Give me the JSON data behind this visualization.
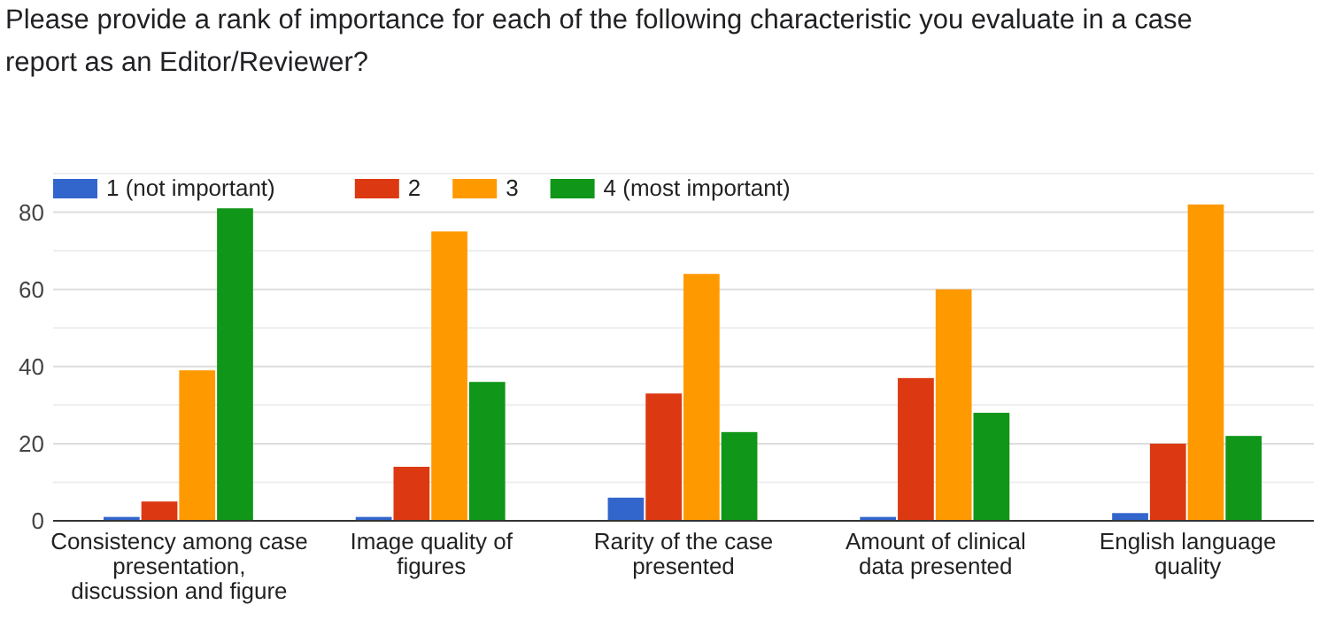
{
  "chart_data": {
    "type": "bar",
    "title": "Please provide a rank of importance for each of the following characteristic you evaluate in a case report as an Editor/Reviewer?",
    "categories": [
      "Consistency among case presentation, discussion and figure",
      "Image quality of figures",
      "Rarity of the case presented",
      "Amount of clinical data presented",
      "English language quality"
    ],
    "series": [
      {
        "name": "1 (not important)",
        "color": "#3366cc",
        "values": [
          1,
          1,
          6,
          1,
          2
        ]
      },
      {
        "name": "2",
        "color": "#dc3912",
        "values": [
          5,
          14,
          33,
          37,
          20
        ]
      },
      {
        "name": "3",
        "color": "#ff9900",
        "values": [
          39,
          75,
          64,
          60,
          82
        ]
      },
      {
        "name": "4 (most important)",
        "color": "#109618",
        "values": [
          81,
          36,
          23,
          28,
          22
        ]
      }
    ],
    "ylim": [
      0,
      90
    ],
    "yticks": [
      0,
      {
        "value": 10,
        "label": null
      },
      20,
      {
        "value": 30,
        "label": null
      },
      40,
      {
        "value": 50,
        "label": null
      },
      60,
      {
        "value": 70,
        "label": null
      },
      80,
      {
        "value": 90,
        "label": null
      }
    ],
    "grid": true,
    "legend": "top left"
  }
}
